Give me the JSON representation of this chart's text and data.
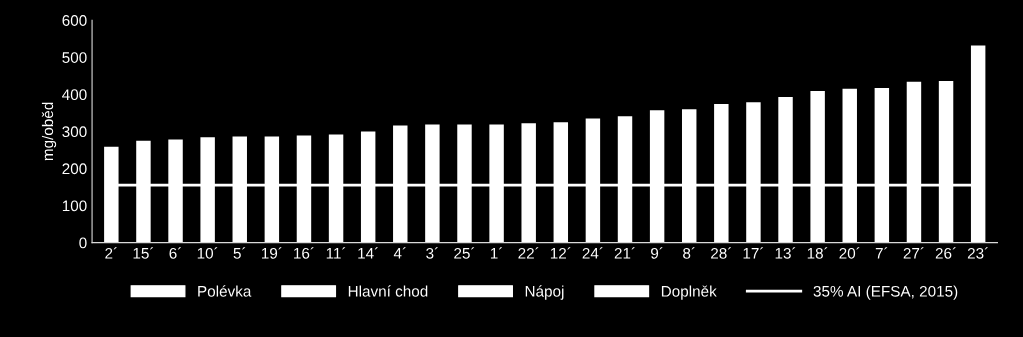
{
  "chart_data": {
    "type": "bar",
    "ylabel": "mg/oběd",
    "categories": [
      "2´",
      "15´",
      "6´",
      "10´",
      "5´",
      "19´",
      "16´",
      "11´",
      "14´",
      "4´",
      "3´",
      "25´",
      "1´",
      "22´",
      "12´",
      "24´",
      "21´",
      "9´",
      "8´",
      "28´",
      "17´",
      "13´",
      "18´",
      "20´",
      "7´",
      "27´",
      "26´",
      "23´"
    ],
    "values": [
      259,
      275,
      278,
      284,
      286,
      286,
      289,
      292,
      300,
      316,
      319,
      319,
      319,
      322,
      325,
      335,
      341,
      357,
      360,
      374,
      379,
      393,
      409,
      415,
      417,
      434,
      436,
      532
    ],
    "color": "#ffffff",
    "series": [
      {
        "name": "Polévka",
        "color": "#ffffff",
        "values": [
          null,
          null,
          null,
          null,
          null,
          null,
          null,
          null,
          null,
          null,
          null,
          null,
          null,
          null,
          null,
          null,
          null,
          null,
          null,
          null,
          null,
          null,
          null,
          null,
          null,
          null,
          null,
          null
        ]
      },
      {
        "name": "Hlavní chod",
        "color": "#ffffff",
        "values": [
          null,
          null,
          null,
          null,
          null,
          null,
          null,
          null,
          null,
          null,
          null,
          null,
          null,
          null,
          null,
          null,
          null,
          null,
          null,
          null,
          null,
          null,
          null,
          null,
          null,
          null,
          null,
          null
        ]
      },
      {
        "name": "Nápoj",
        "color": "#ffffff",
        "values": [
          null,
          null,
          null,
          null,
          null,
          null,
          null,
          null,
          null,
          null,
          null,
          null,
          null,
          null,
          null,
          null,
          null,
          null,
          null,
          null,
          null,
          null,
          null,
          null,
          null,
          null,
          null,
          null
        ]
      },
      {
        "name": "Doplněk",
        "color": "#ffffff",
        "values": [
          null,
          null,
          null,
          null,
          null,
          null,
          null,
          null,
          null,
          null,
          null,
          null,
          null,
          null,
          null,
          null,
          null,
          null,
          null,
          null,
          null,
          null,
          null,
          null,
          null,
          null,
          null,
          null
        ]
      }
    ],
    "ref_lines": [
      {
        "axis": "y",
        "value": 155,
        "label": "35% AI (EFSA, 2015)",
        "color": "#ffffff"
      }
    ],
    "ylim": [
      0,
      600
    ],
    "yticks": [
      0,
      100,
      200,
      300,
      400,
      500,
      600
    ],
    "grid": false,
    "legend": "bottom"
  }
}
